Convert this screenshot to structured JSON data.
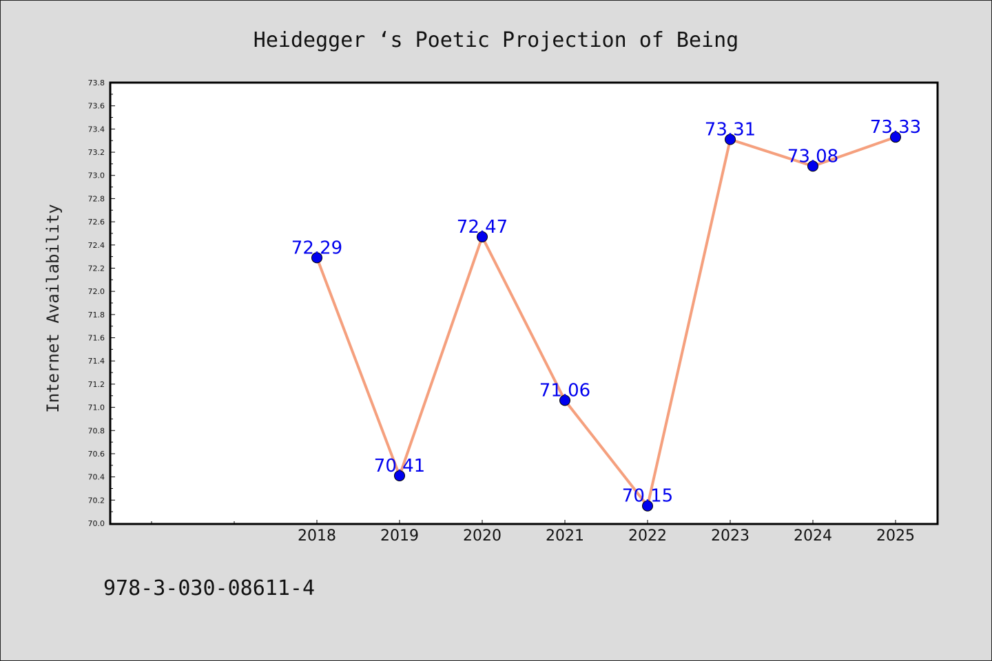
{
  "chart_data": {
    "type": "line",
    "title": "Heidegger ‘s Poetic Projection of Being",
    "ylabel": "Internet Availability",
    "xlabel": "",
    "x": [
      "2018",
      "2019",
      "2020",
      "2021",
      "2022",
      "2023",
      "2024",
      "2025"
    ],
    "y": [
      72.29,
      70.41,
      72.47,
      71.06,
      70.15,
      73.31,
      73.08,
      73.33
    ],
    "data_labels": [
      "72.29",
      "70.41",
      "72.47",
      "71.06",
      "70.15",
      "73.31",
      "73.08",
      "73.33"
    ],
    "ylim": [
      70.0,
      73.8
    ],
    "yticks": [
      "70.0",
      "70.2",
      "70.4",
      "70.6",
      "70.8",
      "71.0",
      "71.2",
      "71.4",
      "71.6",
      "71.8",
      "72.0",
      "72.2",
      "72.4",
      "72.6",
      "72.8",
      "73.0",
      "73.2",
      "73.4",
      "73.6",
      "73.8"
    ],
    "grid": false,
    "legend": false,
    "colors": {
      "line": "#f5a07e",
      "marker": "#0000ee",
      "label": "#0000ee",
      "background": "#dcdcdc",
      "plot_background": "#ffffff"
    }
  },
  "footer": {
    "isbn": "978-3-030-08611-4"
  }
}
